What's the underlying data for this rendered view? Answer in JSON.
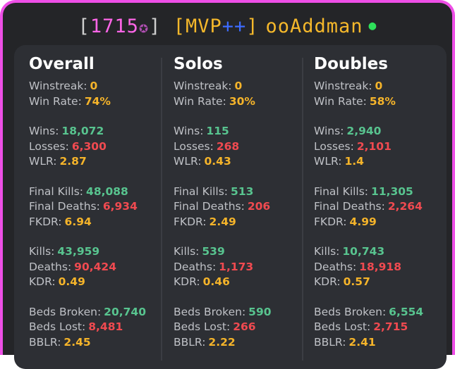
{
  "header": {
    "bracket_open": "[",
    "level": "1715",
    "star": "✪",
    "bracket_close": "]",
    "rank_open": "[MVP",
    "rank_plus": "++",
    "rank_close": "]",
    "player_name": "ooAddman",
    "status_dot": "●"
  },
  "colors": {
    "border": "#ee4fe6",
    "green": "#58c48f",
    "red": "#f04a50",
    "gold": "#f5b42a",
    "online": "#2ee05a"
  },
  "labels": {
    "winstreak": "Winstreak:",
    "winrate": "Win Rate:",
    "wins": "Wins:",
    "losses": "Losses:",
    "wlr": "WLR:",
    "final_kills": "Final Kills:",
    "final_deaths": "Final Deaths:",
    "fkdr": "FKDR:",
    "kills": "Kills:",
    "deaths": "Deaths:",
    "kdr": "KDR:",
    "beds_broken": "Beds Broken:",
    "beds_lost": "Beds Lost:",
    "bblr": "BBLR:"
  },
  "columns": [
    {
      "title": "Overall",
      "winstreak": "0",
      "winrate": "74%",
      "wins": "18,072",
      "losses": "6,300",
      "wlr": "2.87",
      "final_kills": "48,088",
      "final_deaths": "6,934",
      "fkdr": "6.94",
      "kills": "43,959",
      "deaths": "90,424",
      "kdr": "0.49",
      "beds_broken": "20,740",
      "beds_lost": "8,481",
      "bblr": "2.45"
    },
    {
      "title": "Solos",
      "winstreak": "0",
      "winrate": "30%",
      "wins": "115",
      "losses": "268",
      "wlr": "0.43",
      "final_kills": "513",
      "final_deaths": "206",
      "fkdr": "2.49",
      "kills": "539",
      "deaths": "1,173",
      "kdr": "0.46",
      "beds_broken": "590",
      "beds_lost": "266",
      "bblr": "2.22"
    },
    {
      "title": "Doubles",
      "winstreak": "0",
      "winrate": "58%",
      "wins": "2,940",
      "losses": "2,101",
      "wlr": "1.4",
      "final_kills": "11,305",
      "final_deaths": "2,264",
      "fkdr": "4.99",
      "kills": "10,743",
      "deaths": "18,918",
      "kdr": "0.57",
      "beds_broken": "6,554",
      "beds_lost": "2,715",
      "bblr": "2.41"
    }
  ]
}
